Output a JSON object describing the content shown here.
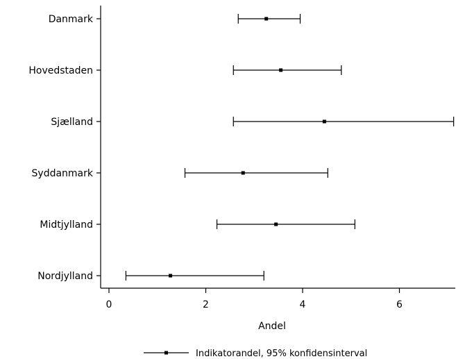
{
  "chart_data": {
    "type": "errorbar",
    "orientation": "horizontal",
    "categories": [
      "Danmark",
      "Hovedstaden",
      "Sjælland",
      "Syddanmark",
      "Midtjylland",
      "Nordjylland"
    ],
    "series": [
      {
        "name": "Indikatorandel, 95% konfidensinterval",
        "values": [
          3.25,
          3.55,
          4.45,
          2.77,
          3.45,
          1.27
        ],
        "lower": [
          2.67,
          2.57,
          2.57,
          1.57,
          2.23,
          0.35
        ],
        "upper": [
          3.95,
          4.8,
          7.12,
          4.52,
          5.08,
          3.2
        ]
      }
    ],
    "xlabel": "Andel",
    "ylabel": "",
    "xlim": [
      -0.2,
      7.15
    ],
    "xticks": [
      0,
      2,
      4,
      6
    ],
    "grid": false,
    "legend": "bottom",
    "colors": {
      "line": "#000000"
    }
  }
}
